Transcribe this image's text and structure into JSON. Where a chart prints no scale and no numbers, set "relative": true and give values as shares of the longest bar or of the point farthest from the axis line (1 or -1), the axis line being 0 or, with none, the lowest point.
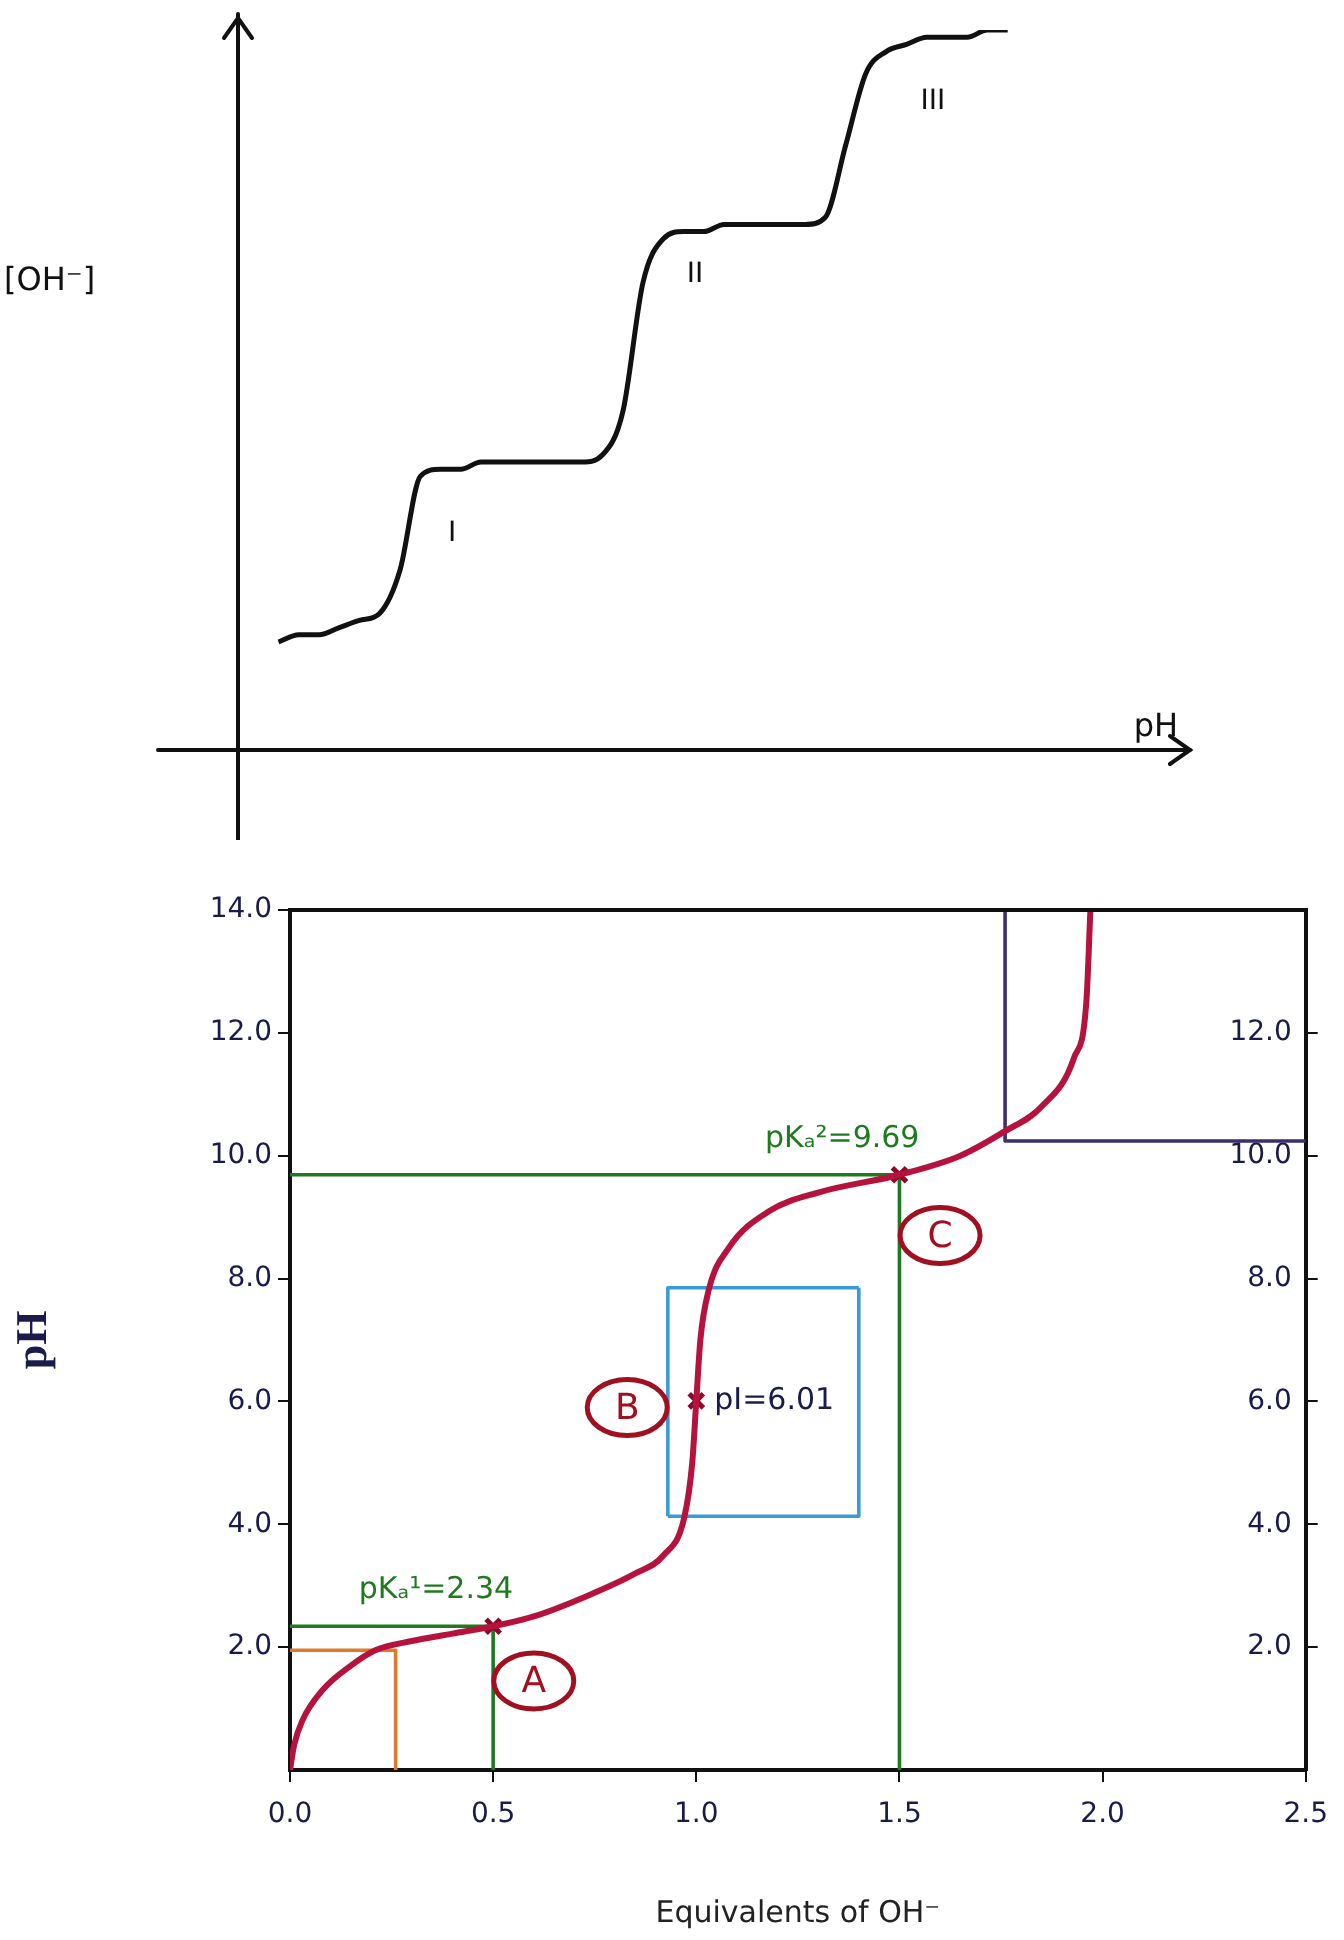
{
  "chart_data": [
    {
      "type": "line",
      "relative": true,
      "tick_labels": false,
      "legend": false,
      "grid": false,
      "xlabel": "pH",
      "ylabel": "[OH⁻]",
      "color": "#111111",
      "categories": [
        null,
        null,
        null,
        null,
        null,
        null,
        null,
        null,
        null,
        null,
        null,
        null,
        null,
        null,
        null,
        null,
        null,
        null,
        null,
        null,
        null,
        null,
        null,
        null,
        null,
        null,
        null,
        null,
        null,
        null,
        null,
        null,
        null,
        null,
        null,
        null,
        null,
        null,
        null,
        null,
        null,
        null,
        null,
        null,
        null,
        null,
        null,
        null
      ],
      "values": [
        null,
        null,
        0.15,
        0.16,
        0.16,
        0.17,
        0.18,
        0.19,
        0.25,
        0.38,
        0.39,
        0.39,
        0.4,
        0.4,
        0.4,
        0.4,
        0.4,
        0.4,
        0.41,
        0.47,
        0.65,
        0.71,
        0.72,
        0.72,
        0.73,
        0.73,
        0.73,
        0.73,
        0.73,
        0.74,
        0.84,
        0.94,
        0.97,
        0.98,
        0.99,
        0.99,
        0.99,
        1.0,
        1.0,
        null,
        null,
        null,
        null,
        null,
        null,
        null,
        null,
        null
      ],
      "annotations": [
        "I",
        "II",
        "III"
      ]
    },
    {
      "type": "line",
      "legend": false,
      "grid": false,
      "xlabel": "Equivalents of OH⁻",
      "ylabel": "pH",
      "xlim": [
        0,
        2.5
      ],
      "xticks": [
        {
          "value": 0,
          "label": "0.0"
        },
        {
          "value": 0.5,
          "label": "0.5"
        },
        {
          "value": 1,
          "label": "1.0"
        },
        {
          "value": 1.5,
          "label": "1.5"
        },
        {
          "value": 2,
          "label": "2.0"
        },
        {
          "value": 2.5,
          "label": "2.5"
        }
      ],
      "ylim": [
        0,
        14
      ],
      "yticks": [
        {
          "value": 2,
          "label": "2.0"
        },
        {
          "value": 4,
          "label": "4.0"
        },
        {
          "value": 6,
          "label": "6.0"
        },
        {
          "value": 8,
          "label": "8.0"
        },
        {
          "value": 10,
          "label": "10.0"
        },
        {
          "value": 12,
          "label": "12.0"
        },
        {
          "value": 14,
          "label": "14.0"
        }
      ],
      "y2lim": [
        0,
        14
      ],
      "y2ticks": [
        {
          "value": 2,
          "label": "2.0"
        },
        {
          "value": 4,
          "label": "4.0"
        },
        {
          "value": 6,
          "label": "6.0"
        },
        {
          "value": 8,
          "label": "8.0"
        },
        {
          "value": 10,
          "label": "10.0"
        },
        {
          "value": 12,
          "label": "12.0"
        }
      ],
      "series": [
        {
          "type": "line",
          "color": "#b5123e",
          "x": [
            0,
            0.01,
            0.03,
            0.08,
            0.15,
            0.21,
            0.3,
            0.4,
            0.5,
            0.6,
            0.73,
            0.85,
            0.92,
            0.97,
            0.99,
            1.0,
            1.01,
            1.03,
            1.08,
            1.18,
            1.3,
            1.5,
            1.65,
            1.76,
            1.85,
            1.93,
            1.96,
            1.97
          ],
          "values": [
            0,
            0.4,
            0.8,
            1.3,
            1.7,
            1.95,
            2.1,
            2.22,
            2.34,
            2.5,
            2.83,
            3.2,
            3.5,
            4.1,
            5.0,
            6.01,
            7.0,
            7.8,
            8.5,
            9.1,
            9.4,
            9.69,
            10.0,
            10.4,
            10.8,
            11.6,
            12.5,
            14
          ]
        },
        {
          "type": "scatter",
          "color": "#8b0a2a",
          "marker": "cross",
          "x": [
            0.5,
            1.0,
            1.5
          ],
          "values": [
            2.34,
            6.01,
            9.69
          ]
        },
        {
          "type": "line",
          "color": "#e07a2a",
          "x": [
            0,
            0.26,
            0.26
          ],
          "values": [
            1.95,
            1.95,
            0
          ]
        },
        {
          "type": "line",
          "color": "#3a9ad9",
          "x": [
            0.93,
            0.93,
            1.4
          ],
          "values": [
            4.13,
            7.85,
            7.85
          ]
        },
        {
          "type": "line",
          "color": "#3a9ad9",
          "x": [
            0.93,
            1.4,
            1.4
          ],
          "values": [
            4.13,
            4.13,
            7.85
          ]
        },
        {
          "type": "line",
          "color": "#3d2f6e",
          "x": [
            1.76,
            1.76,
            2.5
          ],
          "values": [
            14,
            10.24,
            10.24
          ]
        }
      ],
      "ref_lines": [
        {
          "axis": "y",
          "value": 2.34,
          "color": "#1f7a1f"
        },
        {
          "axis": "x",
          "value": 0.5,
          "color": "#1f7a1f"
        },
        {
          "axis": "y",
          "value": 9.69,
          "color": "#1f7a1f"
        },
        {
          "axis": "x",
          "value": 1.5,
          "color": "#1f7a1f"
        }
      ],
      "annotations": [
        {
          "text": "pKₐ¹=2.34",
          "x": 0.5,
          "y": 2.34
        },
        {
          "text": "pKₐ²=9.69",
          "x": 1.5,
          "y": 9.69
        },
        {
          "text": "pI=6.01",
          "x": 1.0,
          "y": 6.01
        },
        {
          "text": "A",
          "x": 0.6,
          "y": 1.45
        },
        {
          "text": "B",
          "x": 0.83,
          "y": 5.9
        },
        {
          "text": "C",
          "x": 1.6,
          "y": 8.7
        }
      ]
    }
  ]
}
